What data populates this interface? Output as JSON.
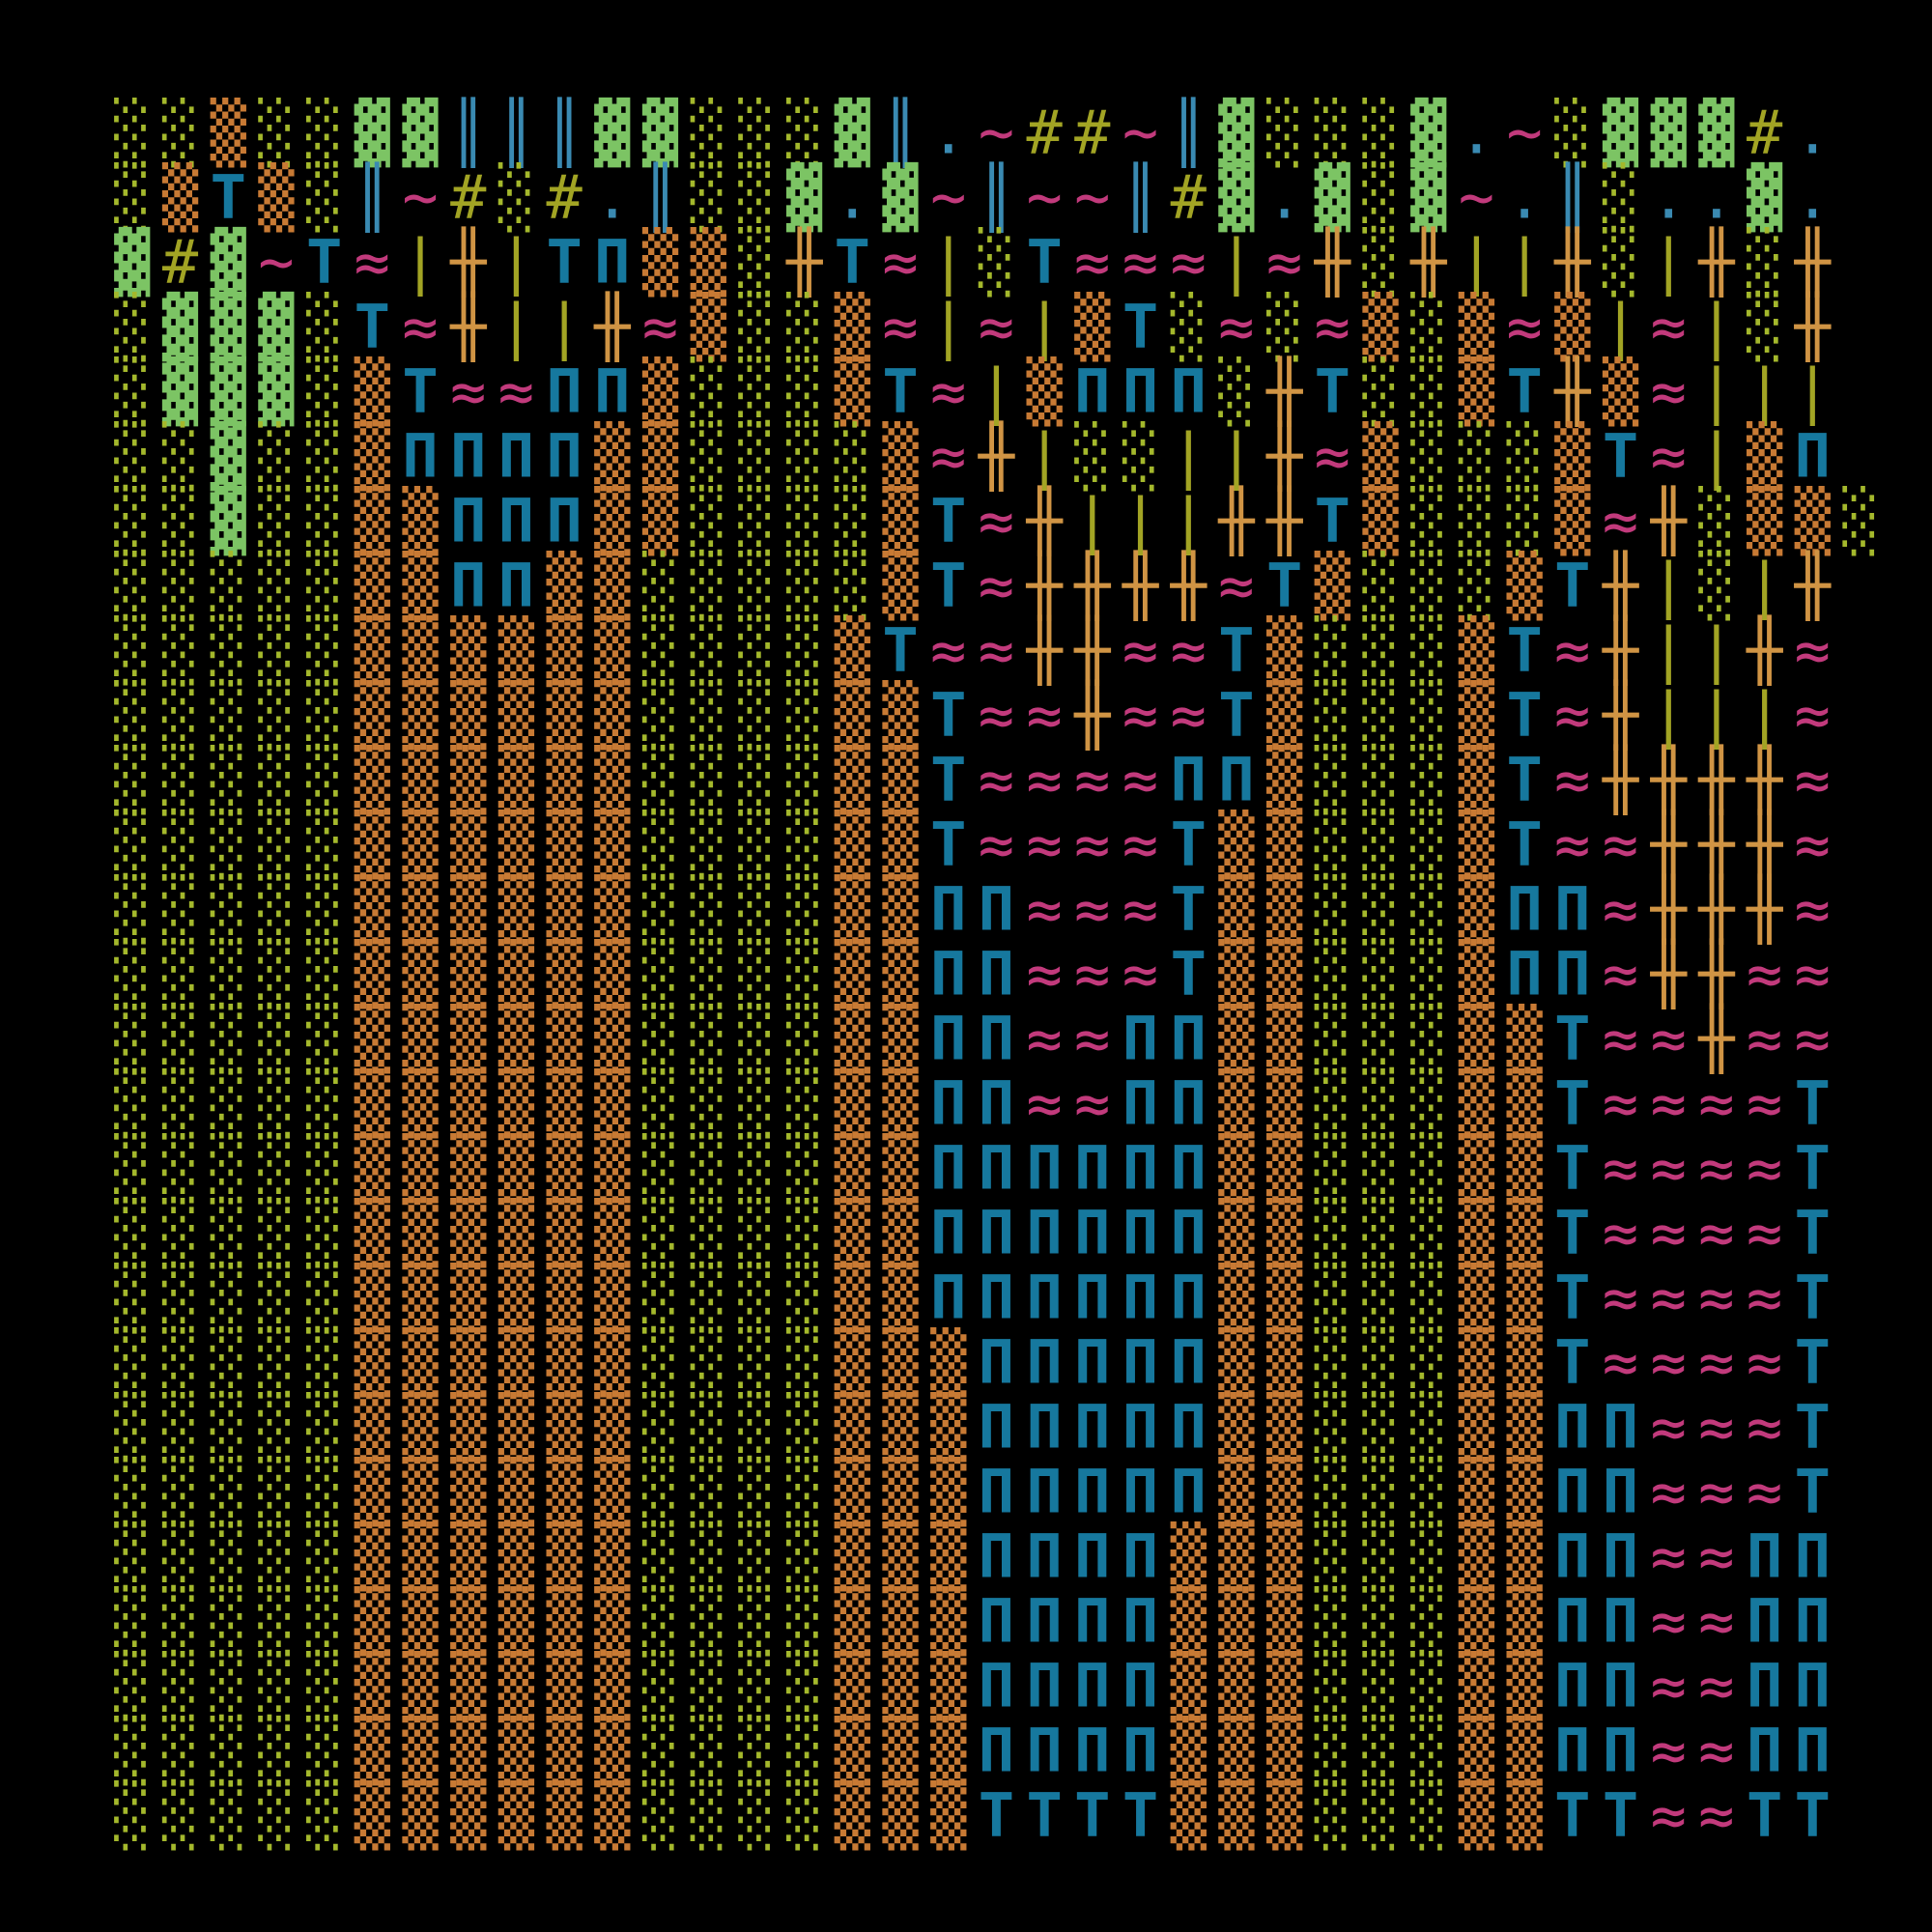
{
  "grid": {
    "rows": [
      "░░▒░░▓▓║║║▓▓░░░▓║.~##~║▓░░░▓.~░▓▓▓#.",
      "░▒T▒░║~#░#.║░░▓.▓~║~~║#▓.▓░▓~.║░..▓.",
      "▓#▓~T≈|╫|TΠ▒▒░╫T≈|░T≈≈≈|≈╫░╫||╫░|╫░╫",
      "░▓▓▓░T≈╫||╫≈▒░░▒≈|≈|▒T░≈░≈▒░▒≈▒|≈|░╫",
      "░▓▓▓░▒T≈≈ΠΠ▒░░░▒T≈|▒ΠΠΠ░╫T░░▒T╫▒≈|||",
      "░░▓░░▒ΠΠΠΠ▒▒░░░░▒≈╫|░░||╫≈▒░░░▒T≈|▒Π",
      "░░▓░░▒▒ΠΠΠ▒▒░░░░▒T≈╫|||╫╫T▒░░░▒≈╫░▒▒░",
      "░░░░░▒▒ΠΠ▒▒░░░░░▒T≈╫╫╫╫≈T▒░░░▒T╫|░|╫",
      "░░░░░▒▒▒▒▒▒░░░░▒T≈≈╫╫≈≈T▒░░░▒T≈╫||╫≈",
      "░░░░░▒▒▒▒▒▒░░░░▒▒T≈≈╫≈≈T▒░░░▒T≈╫|||≈",
      "░░░░░▒▒▒▒▒▒░░░░▒▒T≈≈≈≈ΠΠ▒░░░▒T≈╫╫╫╫≈",
      "░░░░░▒▒▒▒▒▒░░░░▒▒T≈≈≈≈T▒▒░░░▒T≈≈╫╫╫≈",
      "░░░░░▒▒▒▒▒▒░░░░▒▒ΠΠ≈≈≈T▒▒░░░▒ΠΠ≈╫╫╫≈",
      "░░░░░▒▒▒▒▒▒░░░░▒▒ΠΠ≈≈≈T▒▒░░░▒ΠΠ≈╫╫≈≈",
      "░░░░░▒▒▒▒▒▒░░░░▒▒ΠΠ≈≈ΠΠ▒▒░░░▒▒T≈≈╫≈≈",
      "░░░░░▒▒▒▒▒▒░░░░▒▒ΠΠ≈≈ΠΠ▒▒░░░▒▒T≈≈≈≈T",
      "░░░░░▒▒▒▒▒▒░░░░▒▒ΠΠΠΠΠΠ▒▒░░░▒▒T≈≈≈≈T",
      "░░░░░▒▒▒▒▒▒░░░░▒▒ΠΠΠΠΠΠ▒▒░░░▒▒T≈≈≈≈T",
      "░░░░░▒▒▒▒▒▒░░░░▒▒ΠΠΠΠΠΠ▒▒░░░▒▒T≈≈≈≈T",
      "░░░░░▒▒▒▒▒▒░░░░▒▒▒ΠΠΠΠΠ▒▒░░░▒▒T≈≈≈≈T",
      "░░░░░▒▒▒▒▒▒░░░░▒▒▒ΠΠΠΠΠ▒▒░░░▒▒ΠΠ≈≈≈T",
      "░░░░░▒▒▒▒▒▒░░░░▒▒▒ΠΠΠΠΠ▒▒░░░▒▒ΠΠ≈≈≈T",
      "░░░░░▒▒▒▒▒▒░░░░▒▒▒ΠΠΠΠ▒▒▒░░░▒▒ΠΠ≈≈ΠΠ",
      "░░░░░▒▒▒▒▒▒░░░░▒▒▒ΠΠΠΠ▒▒▒░░░▒▒ΠΠ≈≈ΠΠ",
      "░░░░░▒▒▒▒▒▒░░░░▒▒▒ΠΠΠΠ▒▒▒░░░▒▒ΠΠ≈≈ΠΠ",
      "░░░░░▒▒▒▒▒▒░░░░▒▒▒ΠΠΠΠ▒▒▒░░░▒▒ΠΠ≈≈ΠΠ",
      "░░░░░▒▒▒▒▒▒░░░░▒▒▒TTTT▒▒▒░░░▒▒TT≈≈TT"
    ]
  },
  "palette": {
    "░": "#a4b82c",
    "▒": "#c87a34",
    "▓": "#7cc464",
    "║": "#3a8ab2",
    "~": "#c23a7c",
    "#": "#a2a424",
    ".": "#3a8ab2",
    "T": "#16789e",
    "Π": "#16789e",
    "≈": "#c23a7c",
    "╫": "#d09444",
    "|": "#a2a424"
  }
}
